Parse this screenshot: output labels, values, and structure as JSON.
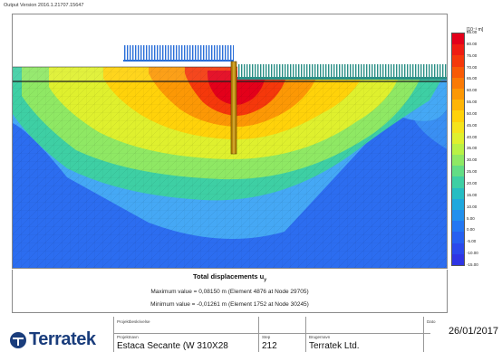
{
  "header": {
    "version": "Output Version 2016.1.21707.15647"
  },
  "plot": {
    "colors": {
      "background": "#2c6df0",
      "soil_light": "#45a8f5",
      "pile": "#b8860b",
      "structure": "#2a8f86"
    }
  },
  "legend": {
    "unit": "[10⁻³ m]",
    "ticks": [
      "85.00",
      "80.00",
      "75.00",
      "70.00",
      "65.00",
      "60.00",
      "55.00",
      "50.00",
      "45.00",
      "40.00",
      "35.00",
      "30.00",
      "25.00",
      "20.00",
      "15.00",
      "10.00",
      "5.00",
      "0.00",
      "-5.00",
      "-10.00",
      "-15.00"
    ],
    "colors": [
      "#e3001a",
      "#ef1c12",
      "#f5380b",
      "#f85a06",
      "#fa7a05",
      "#fc9805",
      "#feb506",
      "#ffd20a",
      "#f5e41c",
      "#dff02e",
      "#b9f145",
      "#8fe864",
      "#63dd85",
      "#3ecfa4",
      "#26bdc3",
      "#1fa8de",
      "#2190ee",
      "#2377f3",
      "#2660f1",
      "#2a49ec",
      "#2e35e4"
    ]
  },
  "caption": {
    "title": "Total displacements u",
    "subscript": "y",
    "max_line": "Maximum value = 0,08150 m (Element 4876 at Node 29705)",
    "min_line": "Minimum value = -0,01261 m (Element 1752 at Node 30245)"
  },
  "footer": {
    "logo_text": "Terratek",
    "project_desc_label": "Projektbeskrivelse",
    "project_name_label": "Projektnavn",
    "project_name": "Estaca Secante (W 310X28",
    "step_label": "Step",
    "step": "212",
    "user_label": "Brugernavn",
    "user": "Terratek Ltd.",
    "date_label": "Dato",
    "date": "26/01/2017"
  }
}
